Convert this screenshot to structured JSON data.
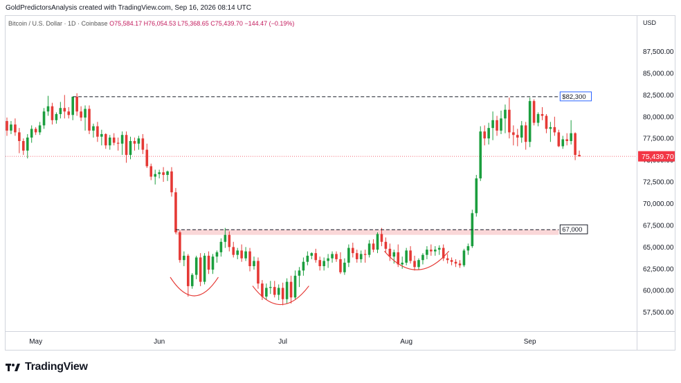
{
  "header": {
    "created_text": "GoldPredictorsAnalysis created with TradingView.com, Sep 16, 2026 08:14 UTC"
  },
  "legend": {
    "symbol": "Bitcoin / U.S. Dollar · 1D · Coinbase",
    "o_label": "O",
    "o": "75,584.17",
    "h_label": "H",
    "h": "76,054.53",
    "l_label": "L",
    "l": "75,368.65",
    "c_label": "C",
    "c": "75,439.70",
    "change": "−144.47 (−0.19%)"
  },
  "currency": "USD",
  "brand": "TradingView",
  "colors": {
    "up": "#26a69a",
    "upFill": "#1b9e3e",
    "down": "#e53935",
    "line": "#131722",
    "zone": "#f8c9cb",
    "last": "#f23645"
  },
  "chart_data": {
    "type": "candlestick",
    "title": "Bitcoin / U.S. Dollar · 1D · Coinbase",
    "y_ticks": [
      "57,500.00",
      "60,000.00",
      "62,500.00",
      "65,000.00",
      "67,500.00",
      "70,000.00",
      "72,500.00",
      "75,000.00",
      "77,500.00",
      "80,000.00",
      "82,500.00",
      "85,000.00",
      "87,500.00"
    ],
    "y_tick_values": [
      57500,
      60000,
      62500,
      65000,
      67500,
      70000,
      72500,
      75000,
      77500,
      80000,
      82500,
      85000,
      87500
    ],
    "x_ticks": [
      "May",
      "Jun",
      "Jul",
      "Aug",
      "Sep"
    ],
    "x_tick_index": [
      7,
      37,
      67,
      97,
      127
    ],
    "ylim": [
      55400,
      91600
    ],
    "last_price": 75439.7,
    "last_price_label": "75,439.70",
    "resistance": {
      "value": 82300,
      "label": "$82,300",
      "from": 16,
      "to": 134
    },
    "support": {
      "value": 67000,
      "label": "67,000",
      "from": 41,
      "to": 134,
      "zone_low": 66400
    },
    "arcs": [
      {
        "from": 40,
        "to": 51
      },
      {
        "from": 60,
        "to": 73
      },
      {
        "from": 92,
        "to": 107
      }
    ],
    "candles": [
      [
        79500,
        79900,
        77800,
        78400
      ],
      [
        78400,
        79500,
        78000,
        79100
      ],
      [
        79100,
        79800,
        77800,
        78200
      ],
      [
        78200,
        78700,
        75800,
        77200
      ],
      [
        77200,
        77500,
        75600,
        76100
      ],
      [
        76100,
        78000,
        75200,
        77600
      ],
      [
        77600,
        79000,
        77000,
        78600
      ],
      [
        78600,
        78800,
        77900,
        78200
      ],
      [
        78200,
        79400,
        77900,
        79000
      ],
      [
        79000,
        81000,
        78600,
        80600
      ],
      [
        80600,
        82400,
        80100,
        81200
      ],
      [
        81200,
        81600,
        79100,
        79600
      ],
      [
        79600,
        80500,
        79200,
        80300
      ],
      [
        80300,
        81700,
        79800,
        81000
      ],
      [
        81000,
        82500,
        79800,
        80600
      ],
      [
        80600,
        81100,
        79800,
        80200
      ],
      [
        80200,
        82300,
        79600,
        82300
      ],
      [
        82300,
        82700,
        80100,
        80600
      ],
      [
        80600,
        81200,
        79500,
        79900
      ],
      [
        79900,
        81300,
        78400,
        80900
      ],
      [
        80900,
        81300,
        78000,
        78400
      ],
      [
        78400,
        79200,
        77600,
        78900
      ],
      [
        78900,
        79400,
        77100,
        77700
      ],
      [
        77700,
        78500,
        76700,
        78000
      ],
      [
        78000,
        78100,
        76300,
        76700
      ],
      [
        76700,
        77900,
        76200,
        77600
      ],
      [
        77600,
        78100,
        76700,
        77000
      ],
      [
        77000,
        77600,
        76100,
        76900
      ],
      [
        76900,
        78300,
        75600,
        77900
      ],
      [
        77900,
        78300,
        74700,
        75600
      ],
      [
        75600,
        77700,
        75100,
        77200
      ],
      [
        77200,
        77600,
        76100,
        76900
      ],
      [
        76900,
        77800,
        76200,
        77500
      ],
      [
        77500,
        78000,
        75700,
        76200
      ],
      [
        76200,
        76900,
        74100,
        74300
      ],
      [
        74300,
        74600,
        72700,
        73100
      ],
      [
        73100,
        73900,
        72200,
        73400
      ],
      [
        73400,
        73900,
        72900,
        73600
      ],
      [
        73600,
        74200,
        72500,
        73300
      ],
      [
        73300,
        73800,
        72600,
        73700
      ],
      [
        73700,
        74200,
        70800,
        71300
      ],
      [
        71300,
        71800,
        66500,
        66700
      ],
      [
        66700,
        66900,
        63200,
        63500
      ],
      [
        63500,
        64500,
        62800,
        64000
      ],
      [
        64000,
        64200,
        59300,
        60500
      ],
      [
        60500,
        62000,
        60200,
        61800
      ],
      [
        61800,
        64000,
        61300,
        63800
      ],
      [
        63800,
        64300,
        60500,
        61000
      ],
      [
        61000,
        64300,
        60700,
        64000
      ],
      [
        64000,
        64500,
        61900,
        62400
      ],
      [
        62400,
        64200,
        61900,
        63900
      ],
      [
        63900,
        64600,
        63200,
        64400
      ],
      [
        64400,
        66000,
        63900,
        65600
      ],
      [
        65600,
        67200,
        64900,
        66400
      ],
      [
        66400,
        66800,
        64500,
        65000
      ],
      [
        65000,
        65600,
        63800,
        64100
      ],
      [
        64100,
        64900,
        63600,
        64600
      ],
      [
        64600,
        65300,
        63300,
        63700
      ],
      [
        63700,
        65000,
        63400,
        64500
      ],
      [
        64500,
        64900,
        62200,
        62800
      ],
      [
        62800,
        63900,
        62400,
        63400
      ],
      [
        63400,
        63800,
        60200,
        60800
      ],
      [
        60800,
        61200,
        58900,
        59300
      ],
      [
        59300,
        60800,
        58900,
        60300
      ],
      [
        60300,
        61100,
        59600,
        60400
      ],
      [
        60400,
        61100,
        59200,
        59500
      ],
      [
        59500,
        60700,
        58900,
        60300
      ],
      [
        60300,
        60900,
        58300,
        59000
      ],
      [
        59000,
        61400,
        58500,
        61000
      ],
      [
        61000,
        61700,
        58500,
        59200
      ],
      [
        59200,
        62300,
        59000,
        61700
      ],
      [
        61700,
        62700,
        60400,
        62300
      ],
      [
        62300,
        63800,
        61700,
        63300
      ],
      [
        63300,
        64500,
        62900,
        64000
      ],
      [
        64000,
        64400,
        63600,
        64300
      ],
      [
        64300,
        64800,
        63200,
        63500
      ],
      [
        63500,
        63900,
        62300,
        62800
      ],
      [
        62800,
        63800,
        62300,
        63400
      ],
      [
        63400,
        64200,
        62600,
        63700
      ],
      [
        63700,
        64500,
        63200,
        64200
      ],
      [
        64200,
        64500,
        63300,
        63600
      ],
      [
        63600,
        64400,
        61900,
        62100
      ],
      [
        62100,
        63700,
        61800,
        63200
      ],
      [
        63200,
        65300,
        62700,
        64900
      ],
      [
        64900,
        65500,
        63800,
        64300
      ],
      [
        64300,
        64700,
        63200,
        63600
      ],
      [
        63600,
        64600,
        63200,
        64200
      ],
      [
        64200,
        64700,
        63200,
        64100
      ],
      [
        64100,
        65800,
        63800,
        65400
      ],
      [
        65400,
        65900,
        64400,
        64700
      ],
      [
        64700,
        66700,
        64300,
        66500
      ],
      [
        66500,
        67200,
        65100,
        65600
      ],
      [
        65600,
        66100,
        64400,
        64800
      ],
      [
        64800,
        65400,
        63400,
        63900
      ],
      [
        63900,
        64700,
        63100,
        64400
      ],
      [
        64400,
        65300,
        62700,
        63000
      ],
      [
        63000,
        63900,
        62500,
        63200
      ],
      [
        63200,
        64900,
        62900,
        64600
      ],
      [
        64600,
        65100,
        63100,
        63400
      ],
      [
        63400,
        64000,
        62300,
        62700
      ],
      [
        62700,
        63700,
        62400,
        63500
      ],
      [
        63500,
        64300,
        63000,
        64100
      ],
      [
        64100,
        65100,
        63600,
        64700
      ],
      [
        64700,
        65300,
        64000,
        64500
      ],
      [
        64500,
        65100,
        64000,
        64700
      ],
      [
        64700,
        65200,
        64100,
        64900
      ],
      [
        64900,
        65300,
        63400,
        63700
      ],
      [
        63700,
        64200,
        63100,
        63500
      ],
      [
        63500,
        63800,
        62900,
        63300
      ],
      [
        63300,
        63600,
        62700,
        63100
      ],
      [
        63100,
        63500,
        62600,
        62900
      ],
      [
        62900,
        64800,
        62700,
        64600
      ],
      [
        64600,
        65400,
        64100,
        65100
      ],
      [
        65100,
        69300,
        64900,
        68900
      ],
      [
        68900,
        73300,
        68500,
        72900
      ],
      [
        72900,
        78900,
        72600,
        78300
      ],
      [
        78300,
        79000,
        76700,
        77500
      ],
      [
        77500,
        79300,
        76800,
        78700
      ],
      [
        78700,
        80600,
        77300,
        79600
      ],
      [
        79600,
        80100,
        77800,
        78400
      ],
      [
        78400,
        80700,
        78000,
        79800
      ],
      [
        79800,
        81400,
        78100,
        80800
      ],
      [
        80800,
        82200,
        77500,
        78200
      ],
      [
        78200,
        79000,
        76700,
        77900
      ],
      [
        77900,
        78600,
        76600,
        77600
      ],
      [
        77600,
        79500,
        77000,
        79000
      ],
      [
        79000,
        79400,
        76200,
        77100
      ],
      [
        77100,
        82200,
        76500,
        81800
      ],
      [
        81800,
        82000,
        79000,
        79300
      ],
      [
        79300,
        80500,
        78900,
        80300
      ],
      [
        80300,
        81100,
        79600,
        80100
      ],
      [
        80100,
        80300,
        78100,
        78600
      ],
      [
        78600,
        79400,
        77100,
        78800
      ],
      [
        78800,
        80000,
        77800,
        78200
      ],
      [
        78200,
        78500,
        76500,
        76600
      ],
      [
        76600,
        77800,
        76300,
        77400
      ],
      [
        77400,
        78100,
        76700,
        77200
      ],
      [
        77200,
        79600,
        76800,
        78100
      ],
      [
        78100,
        78200,
        75000,
        75600
      ],
      [
        75600,
        76100,
        75400,
        75440
      ]
    ]
  }
}
